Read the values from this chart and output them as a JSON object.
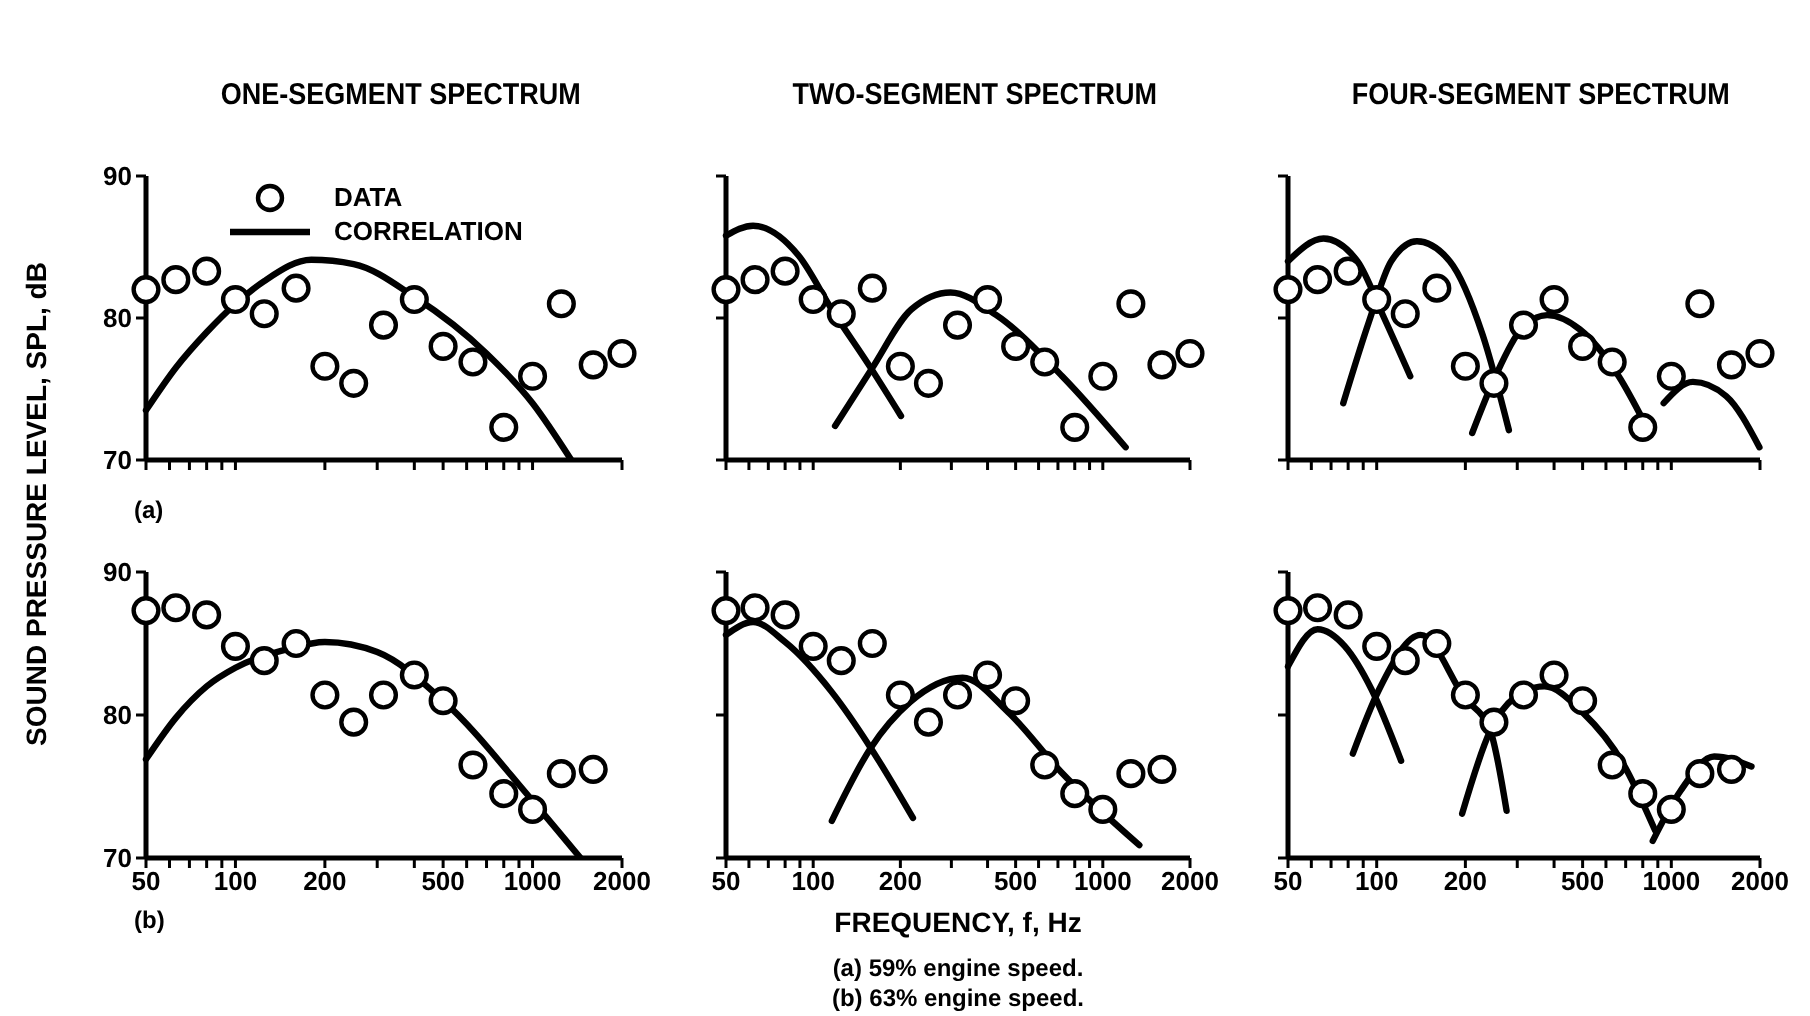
{
  "chart_data": [
    {
      "type": "line",
      "title": "ONE-SEGMENT SPECTRUM",
      "xlim": [
        50,
        2000
      ],
      "ylim": [
        70,
        90
      ],
      "log": "x",
      "xticks": [
        50,
        {
          "value": 60,
          "label": null
        },
        {
          "value": 70,
          "label": null
        },
        {
          "value": 80,
          "label": null
        },
        {
          "value": 90,
          "label": null
        },
        100,
        200,
        {
          "value": 300,
          "label": null
        },
        {
          "value": 400,
          "label": null
        },
        500,
        {
          "value": 600,
          "label": null
        },
        {
          "value": 700,
          "label": null
        },
        {
          "value": 800,
          "label": null
        },
        {
          "value": 900,
          "label": null
        },
        1000,
        2000
      ],
      "yticks": [
        70,
        80,
        90
      ],
      "tick_labels": "y",
      "legend": "top left",
      "annotations": [
        "(a)"
      ],
      "series": [
        {
          "name": "DATA",
          "type": "scatter",
          "marker": "circle",
          "color": "#000000",
          "x": [
            50,
            63,
            80,
            100,
            125,
            160,
            200,
            250,
            315,
            400,
            500,
            630,
            800,
            1000,
            1250,
            1600,
            2000
          ],
          "values": [
            82.0,
            82.7,
            83.3,
            81.3,
            80.3,
            82.1,
            76.6,
            75.4,
            79.5,
            81.3,
            78.0,
            76.9,
            72.3,
            75.9,
            81.0,
            76.7,
            77.5
          ]
        },
        {
          "name": "CORRELATION",
          "type": "line",
          "marker": "none",
          "color": "#000000",
          "x": [
            50,
            63,
            80,
            100,
            125,
            180,
            250,
            400,
            700,
            1000,
            1350
          ],
          "values": [
            73.5,
            76.5,
            79,
            81,
            82.6,
            84.1,
            83.8,
            81.5,
            77.5,
            74,
            70
          ]
        }
      ]
    },
    {
      "type": "line",
      "title": "TWO-SEGMENT SPECTRUM",
      "xlim": [
        50,
        2000
      ],
      "ylim": [
        70,
        90
      ],
      "log": "x",
      "xticks": [
        50,
        {
          "value": 60,
          "label": null
        },
        {
          "value": 70,
          "label": null
        },
        {
          "value": 80,
          "label": null
        },
        {
          "value": 90,
          "label": null
        },
        100,
        200,
        {
          "value": 300,
          "label": null
        },
        {
          "value": 400,
          "label": null
        },
        500,
        {
          "value": 600,
          "label": null
        },
        {
          "value": 700,
          "label": null
        },
        {
          "value": 800,
          "label": null
        },
        {
          "value": 900,
          "label": null
        },
        1000,
        2000
      ],
      "yticks": [
        70,
        80,
        90
      ],
      "tick_labels": false,
      "series": [
        {
          "type": "scatter",
          "marker": "circle",
          "color": "#000000",
          "x": [
            50,
            63,
            80,
            100,
            125,
            160,
            200,
            250,
            315,
            400,
            500,
            630,
            800,
            1000,
            1250,
            1600,
            2000
          ],
          "values": [
            82.0,
            82.7,
            83.3,
            81.3,
            80.3,
            82.1,
            76.6,
            75.4,
            79.5,
            81.3,
            78.0,
            76.9,
            72.3,
            75.9,
            81.0,
            76.7,
            77.5
          ]
        },
        {
          "type": "line",
          "marker": "none",
          "color": "#000000",
          "x": [
            50,
            62,
            89,
            116,
            159,
            201
          ],
          "values": [
            85.8,
            86.5,
            84.4,
            80.6,
            76.4,
            73.1
          ]
        },
        {
          "type": "line",
          "marker": "none",
          "color": "#000000",
          "x": [
            119,
            159,
            218,
            298,
            429,
            724,
            1199
          ],
          "values": [
            72.4,
            76.4,
            80.6,
            81.8,
            80.2,
            75.9,
            70.9
          ]
        }
      ]
    },
    {
      "type": "line",
      "title": "FOUR-SEGMENT SPECTRUM",
      "xlim": [
        50,
        2000
      ],
      "ylim": [
        70,
        90
      ],
      "log": "x",
      "xticks": [
        50,
        {
          "value": 60,
          "label": null
        },
        {
          "value": 70,
          "label": null
        },
        {
          "value": 80,
          "label": null
        },
        {
          "value": 90,
          "label": null
        },
        100,
        200,
        {
          "value": 300,
          "label": null
        },
        {
          "value": 400,
          "label": null
        },
        500,
        {
          "value": 600,
          "label": null
        },
        {
          "value": 700,
          "label": null
        },
        {
          "value": 800,
          "label": null
        },
        {
          "value": 900,
          "label": null
        },
        1000,
        2000
      ],
      "yticks": [
        70,
        80,
        90
      ],
      "tick_labels": false,
      "series": [
        {
          "type": "scatter",
          "marker": "circle",
          "color": "#000000",
          "x": [
            50,
            63,
            80,
            100,
            125,
            160,
            200,
            250,
            315,
            400,
            500,
            630,
            800,
            1000,
            1250,
            1600,
            2000
          ],
          "values": [
            82.0,
            82.7,
            83.3,
            81.3,
            80.3,
            82.1,
            76.6,
            75.4,
            79.5,
            81.3,
            78.0,
            76.9,
            72.3,
            75.9,
            81.0,
            76.7,
            77.5
          ]
        },
        {
          "type": "line",
          "marker": "none",
          "color": "#000000",
          "x": [
            50,
            66,
            86,
            106,
            130
          ],
          "values": [
            84.0,
            85.6,
            84.0,
            80.0,
            75.9
          ]
        },
        {
          "type": "line",
          "marker": "none",
          "color": "#000000",
          "x": [
            77,
            94,
            112,
            137,
            177,
            229,
            281
          ],
          "values": [
            74.0,
            79.7,
            84.0,
            85.4,
            84.0,
            78.8,
            72.1
          ]
        },
        {
          "type": "line",
          "marker": "none",
          "color": "#000000",
          "x": [
            211,
            253,
            309,
            379,
            489,
            663,
            812
          ],
          "values": [
            71.9,
            75.9,
            79.2,
            80.2,
            79.2,
            75.9,
            72.6
          ]
        },
        {
          "type": "line",
          "marker": "none",
          "color": "#000000",
          "x": [
            942,
            1184,
            1535,
            1991
          ],
          "values": [
            74.0,
            75.5,
            74.5,
            70.9
          ]
        }
      ]
    },
    {
      "type": "line",
      "ylabel": "SOUND PRESSURE LEVEL, SPL, dB",
      "xlim": [
        50,
        2000
      ],
      "ylim": [
        70,
        90
      ],
      "log": "x",
      "xticks": [
        50,
        {
          "value": 60,
          "label": null
        },
        {
          "value": 70,
          "label": null
        },
        {
          "value": 80,
          "label": null
        },
        {
          "value": 90,
          "label": null
        },
        100,
        200,
        {
          "value": 300,
          "label": null
        },
        {
          "value": 400,
          "label": null
        },
        500,
        {
          "value": 600,
          "label": null
        },
        {
          "value": 700,
          "label": null
        },
        {
          "value": 800,
          "label": null
        },
        {
          "value": 900,
          "label": null
        },
        1000,
        2000
      ],
      "yticks": [
        70,
        80,
        90
      ],
      "annotations": [
        "(b)"
      ],
      "series": [
        {
          "type": "scatter",
          "marker": "circle",
          "color": "#000000",
          "x": [
            50,
            63,
            80,
            100,
            125,
            160,
            200,
            250,
            315,
            400,
            500,
            630,
            800,
            1000,
            1250,
            1600
          ],
          "values": [
            87.3,
            87.5,
            87.0,
            84.8,
            83.8,
            85.0,
            81.4,
            79.5,
            81.4,
            82.8,
            81.0,
            76.5,
            74.5,
            73.4,
            75.9,
            76.2
          ]
        },
        {
          "type": "line",
          "marker": "none",
          "color": "#000000",
          "x": [
            50,
            63,
            80,
            100,
            150,
            200,
            300,
            500,
            1000,
            1450
          ],
          "values": [
            76.9,
            79.8,
            82,
            83.3,
            84.6,
            85.1,
            84.4,
            81,
            74,
            70
          ]
        }
      ]
    },
    {
      "type": "line",
      "xlabel": "FREQUENCY, f, Hz",
      "xlim": [
        50,
        2000
      ],
      "ylim": [
        70,
        90
      ],
      "log": "x",
      "xticks": [
        50,
        {
          "value": 60,
          "label": null
        },
        {
          "value": 70,
          "label": null
        },
        {
          "value": 80,
          "label": null
        },
        {
          "value": 90,
          "label": null
        },
        100,
        200,
        {
          "value": 300,
          "label": null
        },
        {
          "value": 400,
          "label": null
        },
        500,
        {
          "value": 600,
          "label": null
        },
        {
          "value": 700,
          "label": null
        },
        {
          "value": 800,
          "label": null
        },
        {
          "value": 900,
          "label": null
        },
        1000,
        2000
      ],
      "yticks": [
        70,
        80,
        90
      ],
      "tick_labels": "x",
      "annotations": [
        "(a) 59% engine speed.",
        "(b) 63% engine speed."
      ],
      "series": [
        {
          "type": "scatter",
          "marker": "circle",
          "color": "#000000",
          "x": [
            50,
            63,
            80,
            100,
            125,
            160,
            200,
            250,
            315,
            400,
            500,
            630,
            800,
            1000,
            1250,
            1600
          ],
          "values": [
            87.3,
            87.5,
            87.0,
            84.8,
            83.8,
            85.0,
            81.4,
            79.5,
            81.4,
            82.8,
            81.0,
            76.5,
            74.5,
            73.4,
            75.9,
            76.2
          ]
        },
        {
          "type": "line",
          "marker": "none",
          "color": "#000000",
          "x": [
            50,
            62,
            80,
            116,
            158,
            221
          ],
          "values": [
            85.6,
            86.5,
            85.1,
            81.6,
            77.7,
            72.8
          ]
        },
        {
          "type": "line",
          "marker": "none",
          "color": "#000000",
          "x": [
            116,
            158,
            216,
            328,
            471,
            719,
            1337
          ],
          "values": [
            72.6,
            77.7,
            80.9,
            82.6,
            80.2,
            76.0,
            70.9
          ]
        }
      ]
    },
    {
      "type": "line",
      "xlim": [
        50,
        2000
      ],
      "ylim": [
        70,
        90
      ],
      "log": "x",
      "xticks": [
        50,
        {
          "value": 60,
          "label": null
        },
        {
          "value": 70,
          "label": null
        },
        {
          "value": 80,
          "label": null
        },
        {
          "value": 90,
          "label": null
        },
        100,
        200,
        {
          "value": 300,
          "label": null
        },
        {
          "value": 400,
          "label": null
        },
        500,
        {
          "value": 600,
          "label": null
        },
        {
          "value": 700,
          "label": null
        },
        {
          "value": 800,
          "label": null
        },
        {
          "value": 900,
          "label": null
        },
        1000,
        2000
      ],
      "yticks": [
        70,
        80,
        90
      ],
      "tick_labels": "x",
      "series": [
        {
          "type": "scatter",
          "marker": "circle",
          "color": "#000000",
          "x": [
            50,
            63,
            80,
            100,
            125,
            160,
            200,
            250,
            315,
            400,
            500,
            630,
            800,
            1000,
            1250,
            1600
          ],
          "values": [
            87.3,
            87.5,
            87.0,
            84.8,
            83.8,
            85.0,
            81.4,
            79.5,
            81.4,
            82.8,
            81.0,
            76.5,
            74.5,
            73.4,
            75.9,
            76.2
          ]
        },
        {
          "type": "line",
          "marker": "none",
          "color": "#000000",
          "x": [
            50,
            63,
            78,
            96,
            121
          ],
          "values": [
            83.4,
            86.0,
            84.8,
            81.8,
            76.8
          ]
        },
        {
          "type": "line",
          "marker": "none",
          "color": "#000000",
          "x": [
            83,
            102,
            141,
            199,
            243,
            276
          ],
          "values": [
            77.3,
            81.8,
            85.6,
            81.2,
            78.9,
            73.3
          ]
        },
        {
          "type": "line",
          "marker": "none",
          "color": "#000000",
          "x": [
            195,
            243,
            293,
            371,
            499,
            686,
            882
          ],
          "values": [
            73.1,
            78.9,
            81.2,
            82.0,
            80.2,
            76.6,
            71.9
          ]
        },
        {
          "type": "line",
          "marker": "none",
          "color": "#000000",
          "x": [
            865,
            1075,
            1398,
            1871
          ],
          "values": [
            71.2,
            74.7,
            77.1,
            76.4
          ]
        }
      ]
    }
  ]
}
